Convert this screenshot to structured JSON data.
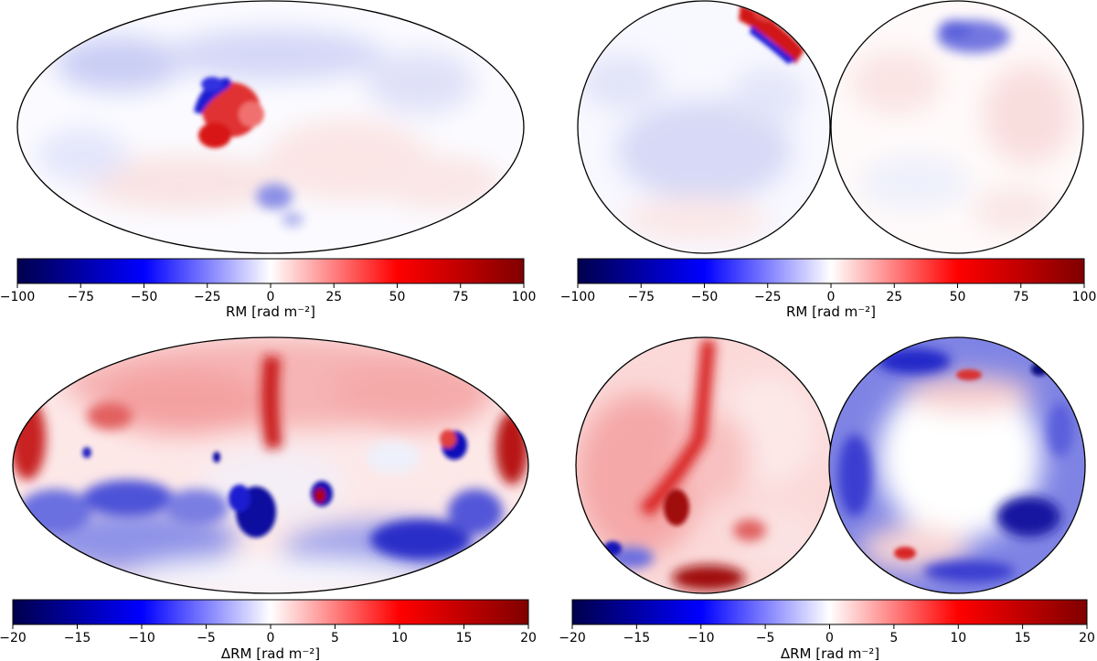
{
  "chart_data": [
    {
      "type": "heatmap",
      "projection": "mollweide",
      "position": "top-left",
      "colormap": "seismic",
      "colorbar": {
        "label": "RM [rad m⁻²]",
        "range": [
          -100,
          100
        ],
        "ticks": [
          "−100",
          "−75",
          "−50",
          "−25",
          "0",
          "25",
          "50",
          "75",
          "100"
        ]
      },
      "features": [
        {
          "lon": -75,
          "lat": 32,
          "value": 85
        },
        {
          "lon": -95,
          "lat": 38,
          "value": -75
        },
        {
          "lon": -82,
          "lat": 40,
          "value": 45
        },
        {
          "lon": -10,
          "lat": -28,
          "value": -30
        },
        {
          "lon": -120,
          "lat": 48,
          "value": -20
        },
        {
          "lon": 20,
          "lat": 15,
          "value": 12
        },
        {
          "lon": 100,
          "lat": -30,
          "value": -12
        },
        {
          "lon": 140,
          "lat": 45,
          "value": -10
        }
      ]
    },
    {
      "type": "heatmap",
      "projection": "orthographic",
      "position": "top-right",
      "colormap": "seismic",
      "colorbar": {
        "label": "RM [rad m⁻²]",
        "range": [
          -100,
          100
        ],
        "ticks": [
          "−100",
          "−75",
          "−50",
          "−25",
          "0",
          "25",
          "50",
          "75",
          "100"
        ]
      },
      "hemispheres": [
        "north",
        "south"
      ]
    },
    {
      "type": "heatmap",
      "projection": "mollweide",
      "position": "bottom-left",
      "colormap": "seismic",
      "colorbar": {
        "label": "ΔRM [rad m⁻²]",
        "range": [
          -20,
          20
        ],
        "ticks": [
          "−20",
          "−15",
          "−10",
          "−5",
          "0",
          "5",
          "10",
          "15",
          "20"
        ]
      }
    },
    {
      "type": "heatmap",
      "projection": "orthographic",
      "position": "bottom-right",
      "colormap": "seismic",
      "colorbar": {
        "label": "ΔRM [rad m⁻²]",
        "range": [
          -20,
          20
        ],
        "ticks": [
          "−20",
          "−15",
          "−10",
          "−5",
          "0",
          "5",
          "10",
          "15",
          "20"
        ]
      },
      "hemispheres": [
        "north",
        "south"
      ]
    }
  ],
  "colors": {
    "colormap": [
      "#00004c",
      "#0000ff",
      "#ffffff",
      "#ff0000",
      "#800000"
    ]
  }
}
